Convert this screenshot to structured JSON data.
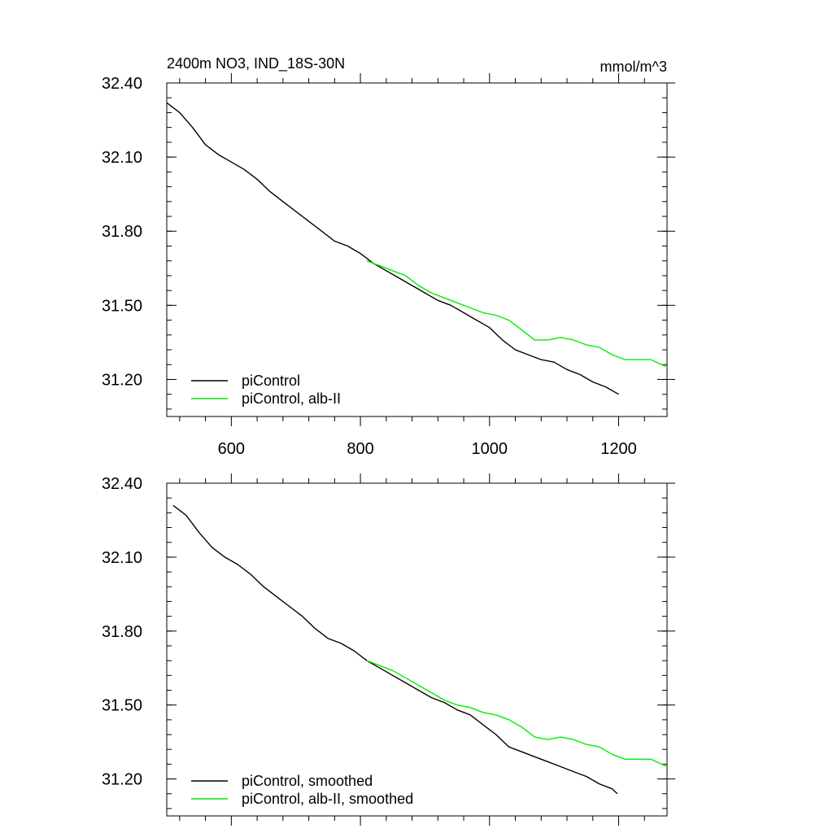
{
  "colors": {
    "control": "#000000",
    "albII": "#00ee00",
    "axis": "#000000",
    "background": "#ffffff"
  },
  "chart_data": [
    {
      "type": "line",
      "title": "2400m NO3, IND_18S-30N",
      "units": "mmol/m^3",
      "xlim": [
        500,
        1275
      ],
      "ylim": [
        31.05,
        32.4
      ],
      "xticks": [
        600,
        800,
        1000,
        1200
      ],
      "xtick_labels": [
        "600",
        "800",
        "1000",
        "1200"
      ],
      "yticks": [
        32.4,
        32.1,
        31.8,
        31.5,
        31.2
      ],
      "ytick_labels": [
        "32.40",
        "32.10",
        "31.80",
        "31.50",
        "31.20"
      ],
      "legend_position": "bottom-left",
      "grid": false,
      "series": [
        {
          "name": "piControl",
          "color": "#000000",
          "x": [
            500,
            520,
            540,
            560,
            580,
            600,
            620,
            640,
            660,
            680,
            700,
            720,
            740,
            760,
            780,
            800,
            820,
            840,
            860,
            880,
            900,
            920,
            940,
            960,
            980,
            1000,
            1020,
            1040,
            1060,
            1080,
            1100,
            1120,
            1140,
            1160,
            1180,
            1200
          ],
          "y": [
            32.32,
            32.28,
            32.22,
            32.15,
            32.11,
            32.08,
            32.05,
            32.01,
            31.96,
            31.92,
            31.88,
            31.84,
            31.8,
            31.76,
            31.74,
            31.71,
            31.67,
            31.64,
            31.61,
            31.58,
            31.55,
            31.52,
            31.5,
            31.47,
            31.44,
            31.41,
            31.36,
            31.32,
            31.3,
            31.28,
            31.27,
            31.24,
            31.22,
            31.19,
            31.17,
            31.14
          ]
        },
        {
          "name": "piControl, alb-II",
          "color": "#00ee00",
          "x": [
            810,
            830,
            850,
            870,
            890,
            910,
            930,
            950,
            970,
            990,
            1010,
            1030,
            1050,
            1070,
            1090,
            1110,
            1130,
            1150,
            1170,
            1190,
            1210,
            1230,
            1250,
            1275
          ],
          "y": [
            31.68,
            31.66,
            31.64,
            31.62,
            31.58,
            31.55,
            31.53,
            31.51,
            31.49,
            31.47,
            31.46,
            31.44,
            31.4,
            31.36,
            31.36,
            31.37,
            31.36,
            31.34,
            31.33,
            31.3,
            31.28,
            31.28,
            31.28,
            31.25
          ]
        }
      ]
    },
    {
      "type": "line",
      "xlim": [
        500,
        1275
      ],
      "ylim": [
        31.05,
        32.4
      ],
      "xticks": [
        600,
        800,
        1000,
        1200
      ],
      "yticks": [
        32.4,
        32.1,
        31.8,
        31.5,
        31.2
      ],
      "ytick_labels": [
        "32.40",
        "32.10",
        "31.80",
        "31.50",
        "31.20"
      ],
      "legend_position": "bottom-left",
      "grid": false,
      "series": [
        {
          "name": "piControl, smoothed",
          "color": "#000000",
          "x": [
            510,
            530,
            550,
            570,
            590,
            610,
            630,
            650,
            670,
            690,
            710,
            730,
            750,
            770,
            790,
            810,
            830,
            850,
            870,
            890,
            910,
            930,
            950,
            970,
            990,
            1010,
            1030,
            1050,
            1070,
            1090,
            1110,
            1130,
            1150,
            1170,
            1190,
            1198
          ],
          "y": [
            32.31,
            32.27,
            32.2,
            32.14,
            32.1,
            32.07,
            32.03,
            31.98,
            31.94,
            31.9,
            31.86,
            31.81,
            31.77,
            31.75,
            31.72,
            31.68,
            31.65,
            31.62,
            31.59,
            31.56,
            31.53,
            31.51,
            31.48,
            31.46,
            31.42,
            31.38,
            31.33,
            31.31,
            31.29,
            31.27,
            31.25,
            31.23,
            31.21,
            31.18,
            31.16,
            31.14
          ]
        },
        {
          "name": "piControl, alb-II, smoothed",
          "color": "#00ee00",
          "x": [
            810,
            830,
            850,
            870,
            890,
            910,
            930,
            950,
            970,
            990,
            1010,
            1030,
            1050,
            1070,
            1090,
            1110,
            1130,
            1150,
            1170,
            1190,
            1210,
            1230,
            1250,
            1275
          ],
          "y": [
            31.68,
            31.66,
            31.64,
            31.61,
            31.58,
            31.55,
            31.52,
            31.5,
            31.49,
            31.47,
            31.46,
            31.44,
            31.41,
            31.37,
            31.36,
            31.37,
            31.36,
            31.34,
            31.33,
            31.3,
            31.28,
            31.28,
            31.28,
            31.25
          ]
        }
      ]
    }
  ]
}
